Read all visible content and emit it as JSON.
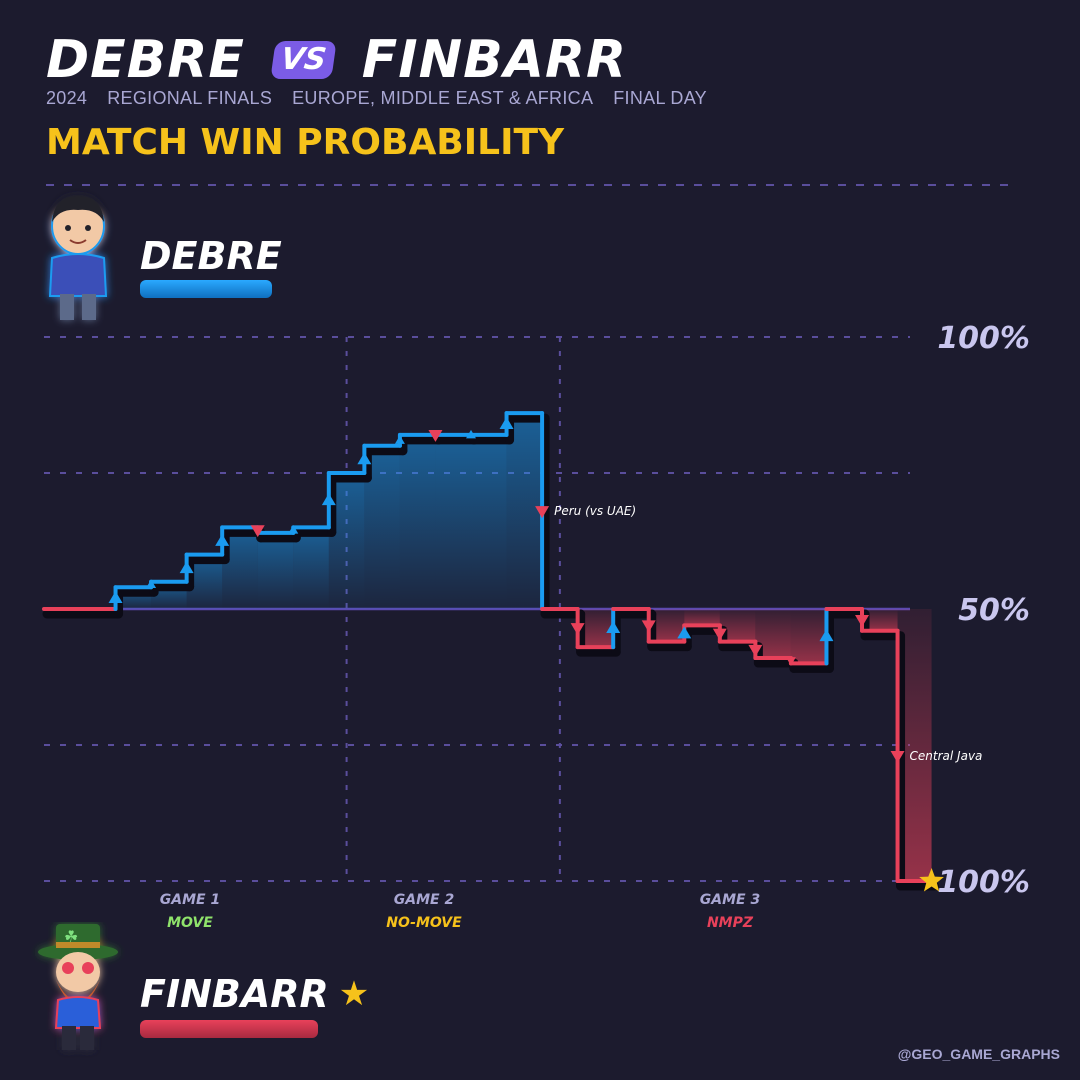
{
  "header": {
    "player_a": "DEBRE",
    "vs": "VS",
    "player_b": "FINBARR",
    "subtitle": [
      "2024",
      "REGIONAL FINALS",
      "EUROPE, MIDDLE EAST & AFRICA",
      "FINAL DAY"
    ],
    "chart_heading": "MATCH WIN PROBABILITY"
  },
  "players": {
    "top": {
      "name": "DEBRE",
      "color": "#1a9bf0"
    },
    "bottom": {
      "name": "FINBARR",
      "color": "#e8415a",
      "winner_icon": "star-icon"
    }
  },
  "watermark": "@GEO_GAME_GRAPHS",
  "colors": {
    "background": "#1c1b2e",
    "grid": "#5a4e9c",
    "debre": "#1a9bf0",
    "finbarr": "#e8415a",
    "star": "#f6c21b"
  },
  "chart_data": {
    "type": "line",
    "step": true,
    "x_unit": "round",
    "y_unit": "Debre match win probability (%)",
    "ylim": [
      0,
      100
    ],
    "y_tick_labels": [
      {
        "value": 100,
        "label": "100%"
      },
      {
        "value": 50,
        "label": "50%"
      },
      {
        "value": 0,
        "label": "100%"
      }
    ],
    "games": [
      {
        "name": "GAME 1",
        "type": "MOVE",
        "color": "#8fe36b",
        "x_start": 0,
        "x_end": 7.5
      },
      {
        "name": "GAME 2",
        "type": "NO-MOVE",
        "color": "#f6c21b",
        "x_start": 7.5,
        "x_end": 13.5
      },
      {
        "name": "GAME 3",
        "type": "NMPZ",
        "color": "#e8415a",
        "x_start": 13.5,
        "x_end": 24
      }
    ],
    "points": [
      {
        "x": 0,
        "y": 50
      },
      {
        "x": 1,
        "y": 54,
        "marker": "up"
      },
      {
        "x": 2,
        "y": 55,
        "marker": "up-small"
      },
      {
        "x": 3,
        "y": 60,
        "marker": "up"
      },
      {
        "x": 4,
        "y": 65,
        "marker": "up"
      },
      {
        "x": 5,
        "y": 64,
        "marker": "down"
      },
      {
        "x": 6,
        "y": 65,
        "marker": "up-small"
      },
      {
        "x": 7,
        "y": 75,
        "marker": "up"
      },
      {
        "x": 8,
        "y": 80,
        "marker": "up"
      },
      {
        "x": 9,
        "y": 82,
        "marker": "up-small"
      },
      {
        "x": 10,
        "y": 82,
        "marker": "down"
      },
      {
        "x": 11,
        "y": 82,
        "marker": "up-small"
      },
      {
        "x": 12,
        "y": 86,
        "marker": "up"
      },
      {
        "x": 13,
        "y": 50,
        "marker": "down",
        "annotation": "Peru (vs UAE)"
      },
      {
        "x": 14,
        "y": 43,
        "marker": "down"
      },
      {
        "x": 15,
        "y": 50,
        "marker": "up"
      },
      {
        "x": 16,
        "y": 44,
        "marker": "down"
      },
      {
        "x": 17,
        "y": 47,
        "marker": "up"
      },
      {
        "x": 18,
        "y": 44,
        "marker": "down"
      },
      {
        "x": 19,
        "y": 41,
        "marker": "down"
      },
      {
        "x": 20,
        "y": 40,
        "marker": "down-small"
      },
      {
        "x": 21,
        "y": 50,
        "marker": "up"
      },
      {
        "x": 22,
        "y": 46,
        "marker": "down"
      },
      {
        "x": 23,
        "y": 0,
        "marker": "down",
        "annotation": "Central Java"
      }
    ],
    "end_marker": "star-icon"
  }
}
